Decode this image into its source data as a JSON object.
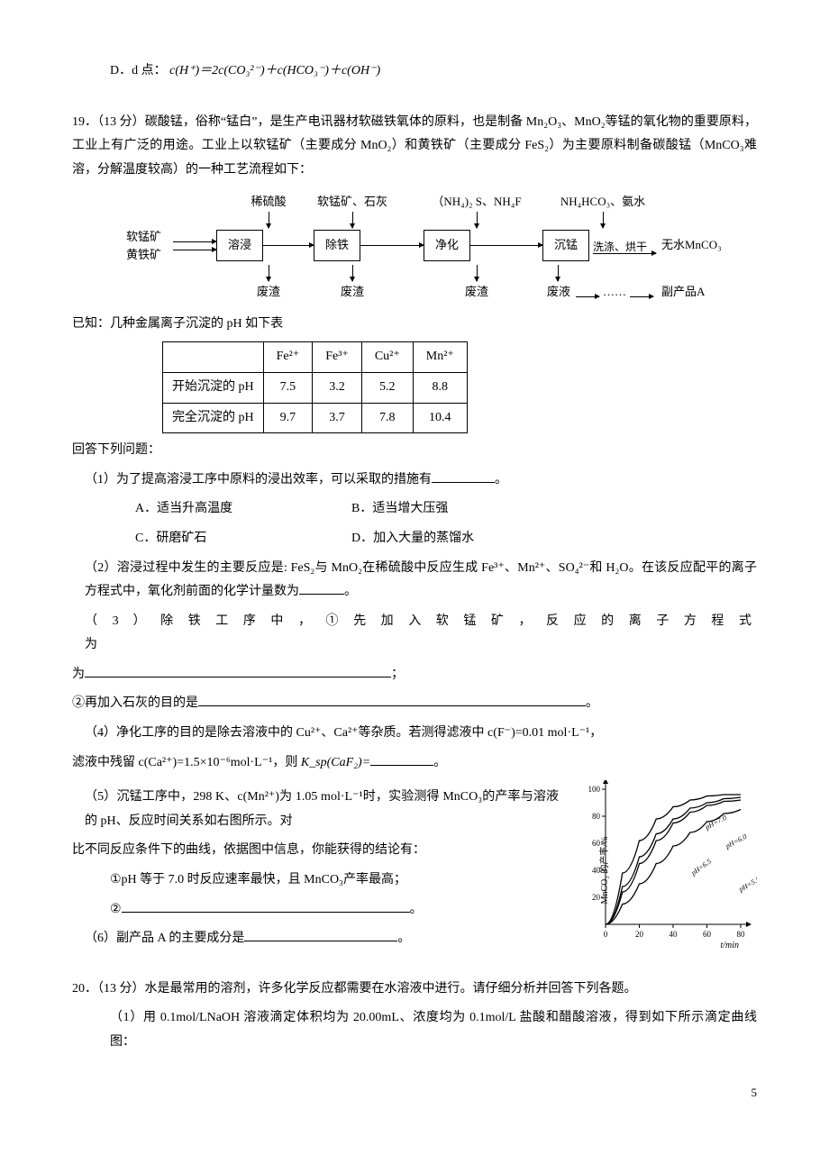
{
  "item_d": {
    "prefix": "D．d 点：",
    "formula": "c(H⁺)＝2c(CO₃²⁻)＋c(HCO₃⁻)＋c(OH⁻)"
  },
  "q19": {
    "heading": "19．（13 分）碳酸锰，俗称“锰白”，是生产电讯器材软磁铁氧体的原料，也是制备 Mn₂O₃、MnO₂等锰的氧化物的重要原料，工业上有广泛的用途。工业上以软锰矿（主要成分 MnO₂）和黄铁矿（主要成分 FeS₂）为主要原料制备碳酸锰（MnCO₃难溶，分解温度较高）的一种工艺流程如下：",
    "flow": {
      "top_labels": [
        "稀硫酸",
        "软锰矿、石灰",
        "（NH₄)₂ S、NH₄F",
        "NH₄HCO₃、氨水"
      ],
      "inputs": [
        "软锰矿",
        "黄铁矿"
      ],
      "nodes": [
        "溶浸",
        "除铁",
        "净化",
        "沉锰"
      ],
      "after_node4": "洗涤、烘干",
      "output": "无水MnCO₃",
      "bottom": [
        "废渣",
        "废渣",
        "废渣",
        "废液"
      ],
      "side_dots": "……",
      "side_arrow_label": "副产品A"
    },
    "known": "已知：几种金属离子沉淀的 pH 如下表",
    "table": {
      "cols": [
        "",
        "Fe²⁺",
        "Fe³⁺",
        "Cu²⁺",
        "Mn²⁺"
      ],
      "rows": [
        [
          "开始沉淀的 pH",
          "7.5",
          "3.2",
          "5.2",
          "8.8"
        ],
        [
          "完全沉淀的 pH",
          "9.7",
          "3.7",
          "7.8",
          "10.4"
        ]
      ]
    },
    "answer_heading": "回答下列问题：",
    "p1": "（1）为了提高溶浸工序中原料的浸出效率，可以采取的措施有",
    "p1_tail": "。",
    "p1_opts": {
      "a": "A．适当升高温度",
      "b": "B．适当增大压强",
      "c": "C．研磨矿石",
      "d": "D．加入大量的蒸馏水"
    },
    "p2": "（2）溶浸过程中发生的主要反应是: FeS₂与 MnO₂在稀硫酸中反应生成 Fe³⁺、Mn²⁺、SO₄²⁻和 H₂O。在该反应配平的离子方程式中，氧化剂前面的化学计量数为",
    "p2_tail": "。",
    "p3_label": "（ 3 ） 除 铁 工 序 中 ， ① 先 加 入 软 锰 矿 ， 反 应 的 离 子 方 程 式 为",
    "p3_tail": "；",
    "p3b": "②再加入石灰的目的是",
    "p3b_tail": "。",
    "p4a": "（4）净化工序的目的是除去溶液中的 Cu²⁺、Ca²⁺等杂质。若测得滤液中 c(F⁻)=0.01 mol·L⁻¹，",
    "p4b_pre": "滤液中残留 c(Ca²⁺)=1.5×10⁻⁶mol·L⁻¹，则 ",
    "p4b_ksp": "K_sp(CaF₂)=",
    "p4b_tail": "。",
    "p5a": "（5）沉锰工序中，298 K、c(Mn²⁺)为 1.05 mol·L⁻¹时，实验测得 MnCO₃的产率与溶液的 pH、反应时间关系如右图所示。对",
    "p5b": "比不同反应条件下的曲线，依据图中信息，你能获得的结论有：",
    "p5c": "①pH 等于 7.0 时反应速率最快，且 MnCO₃产率最高；",
    "p5d_pre": "②",
    "p5d_tail": "。",
    "p6_pre": "（6）副产品 A 的主要成分是",
    "p6_tail": "。",
    "chart": {
      "y_label": "MnCO₃ 的产率/%",
      "x_label": "t/min",
      "x_ticks": [
        "0",
        "20",
        "40",
        "60",
        "80"
      ],
      "y_ticks": [
        "20",
        "40",
        "60",
        "80",
        "100"
      ],
      "series_labels": [
        "pH=7.0",
        "pH=6.0",
        "pH=6.5",
        "pH=5.5"
      ],
      "curve_color": "#000",
      "bg": "#fff",
      "axis_color": "#000",
      "label_fontsize": 9,
      "series": {
        "pH7.0": [
          [
            0,
            0
          ],
          [
            10,
            38
          ],
          [
            20,
            62
          ],
          [
            30,
            78
          ],
          [
            40,
            87
          ],
          [
            50,
            92
          ],
          [
            60,
            95
          ],
          [
            70,
            96
          ],
          [
            80,
            96
          ]
        ],
        "pH6.5": [
          [
            0,
            0
          ],
          [
            10,
            24
          ],
          [
            20,
            45
          ],
          [
            30,
            62
          ],
          [
            40,
            75
          ],
          [
            50,
            83
          ],
          [
            60,
            88
          ],
          [
            70,
            91
          ],
          [
            80,
            92
          ]
        ],
        "pH6.0": [
          [
            0,
            0
          ],
          [
            10,
            28
          ],
          [
            20,
            50
          ],
          [
            30,
            67
          ],
          [
            40,
            78
          ],
          [
            50,
            86
          ],
          [
            60,
            90
          ],
          [
            70,
            93
          ],
          [
            80,
            94
          ]
        ],
        "pH5.5": [
          [
            0,
            0
          ],
          [
            10,
            15
          ],
          [
            20,
            30
          ],
          [
            30,
            45
          ],
          [
            40,
            58
          ],
          [
            50,
            68
          ],
          [
            60,
            76
          ],
          [
            70,
            82
          ],
          [
            80,
            85
          ]
        ]
      }
    }
  },
  "q20": {
    "heading": "20．（13 分）水是最常用的溶剂，许多化学反应都需要在水溶液中进行。请仔细分析并回答下列各题。",
    "p1": "（1）用 0.1mol/LNaOH 溶液滴定体积均为 20.00mL、浓度均为 0.1mol/L 盐酸和醋酸溶液，得到如下所示滴定曲线图："
  },
  "page_number": "5"
}
